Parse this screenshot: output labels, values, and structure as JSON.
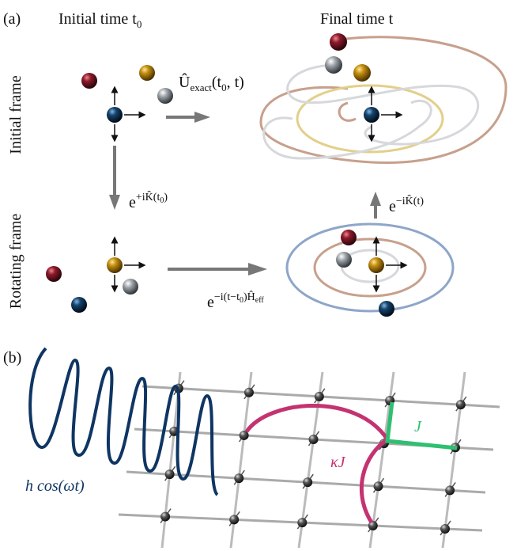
{
  "panel_a": {
    "label": "(a)",
    "columns": [
      [
        "Initial time t",
        "0"
      ],
      [
        "Final time t"
      ]
    ],
    "rows": [
      "Initial frame",
      "Rotating frame"
    ],
    "exact_evolution": [
      "Û",
      "exact",
      "(t",
      "0",
      ", t)"
    ],
    "to_rotating": [
      "e",
      "+iK̂(t",
      "0",
      ")"
    ],
    "to_initial": [
      "e",
      "−iK̂(t)"
    ],
    "effective_evolution": [
      "e",
      "−i(t−t",
      "0",
      ")Ĥ",
      "eff"
    ]
  },
  "panel_b": {
    "label": "(b)",
    "coupling": "J",
    "long_range": "κJ",
    "drive": "h cos(ωt)"
  }
}
